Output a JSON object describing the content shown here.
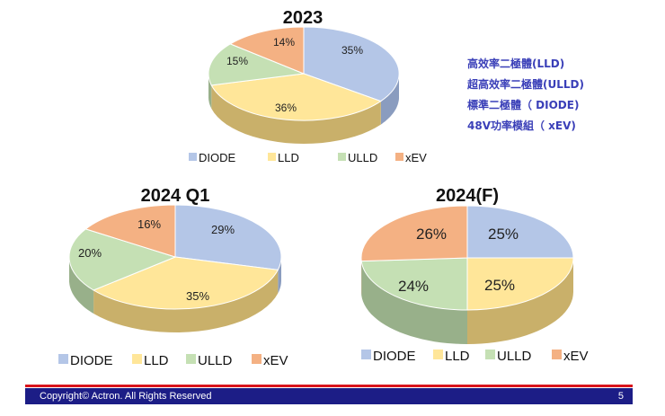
{
  "notes": [
    "高效率二極體(LLD)",
    "超高效率二極體(ULLD)",
    "標準二極體（  DIODE)",
    "48V功率模組（ xEV)"
  ],
  "footer": {
    "copyright": "Copyright© Actron. All Rights Reserved",
    "page_number": "5"
  },
  "colors": {
    "DIODE": "#b4c6e7",
    "LLD": "#ffe699",
    "ULLD": "#c5e0b4",
    "xEV": "#f4b183",
    "footer_bar": "#1c1d86",
    "footer_line": "#d9131b",
    "notes_text": "#3a3fb8"
  },
  "chart_data": [
    {
      "type": "pie",
      "title": "2023",
      "legend": [
        "DIODE",
        "LLD",
        "ULLD",
        "xEV"
      ],
      "legend_position": "bottom",
      "slices": [
        {
          "label": "DIODE",
          "value": 35,
          "display": "35%"
        },
        {
          "label": "LLD",
          "value": 36,
          "display": "36%"
        },
        {
          "label": "ULLD",
          "value": 15,
          "display": "15%"
        },
        {
          "label": "xEV",
          "value": 14,
          "display": "14%"
        }
      ]
    },
    {
      "type": "pie",
      "title": "2024 Q1",
      "legend": [
        "DIODE",
        "LLD",
        "ULLD",
        "xEV"
      ],
      "legend_position": "bottom",
      "slices": [
        {
          "label": "DIODE",
          "value": 29,
          "display": "29%"
        },
        {
          "label": "LLD",
          "value": 35,
          "display": "35%"
        },
        {
          "label": "ULLD",
          "value": 20,
          "display": "20%"
        },
        {
          "label": "xEV",
          "value": 16,
          "display": "16%"
        }
      ]
    },
    {
      "type": "pie",
      "title": "2024(F)",
      "legend": [
        "DIODE",
        "LLD",
        "ULLD",
        "xEV"
      ],
      "legend_position": "bottom",
      "slices": [
        {
          "label": "DIODE",
          "value": 25,
          "display": "25%"
        },
        {
          "label": "LLD",
          "value": 25,
          "display": "25%"
        },
        {
          "label": "ULLD",
          "value": 24,
          "display": "24%"
        },
        {
          "label": "xEV",
          "value": 26,
          "display": "26%"
        }
      ]
    }
  ]
}
